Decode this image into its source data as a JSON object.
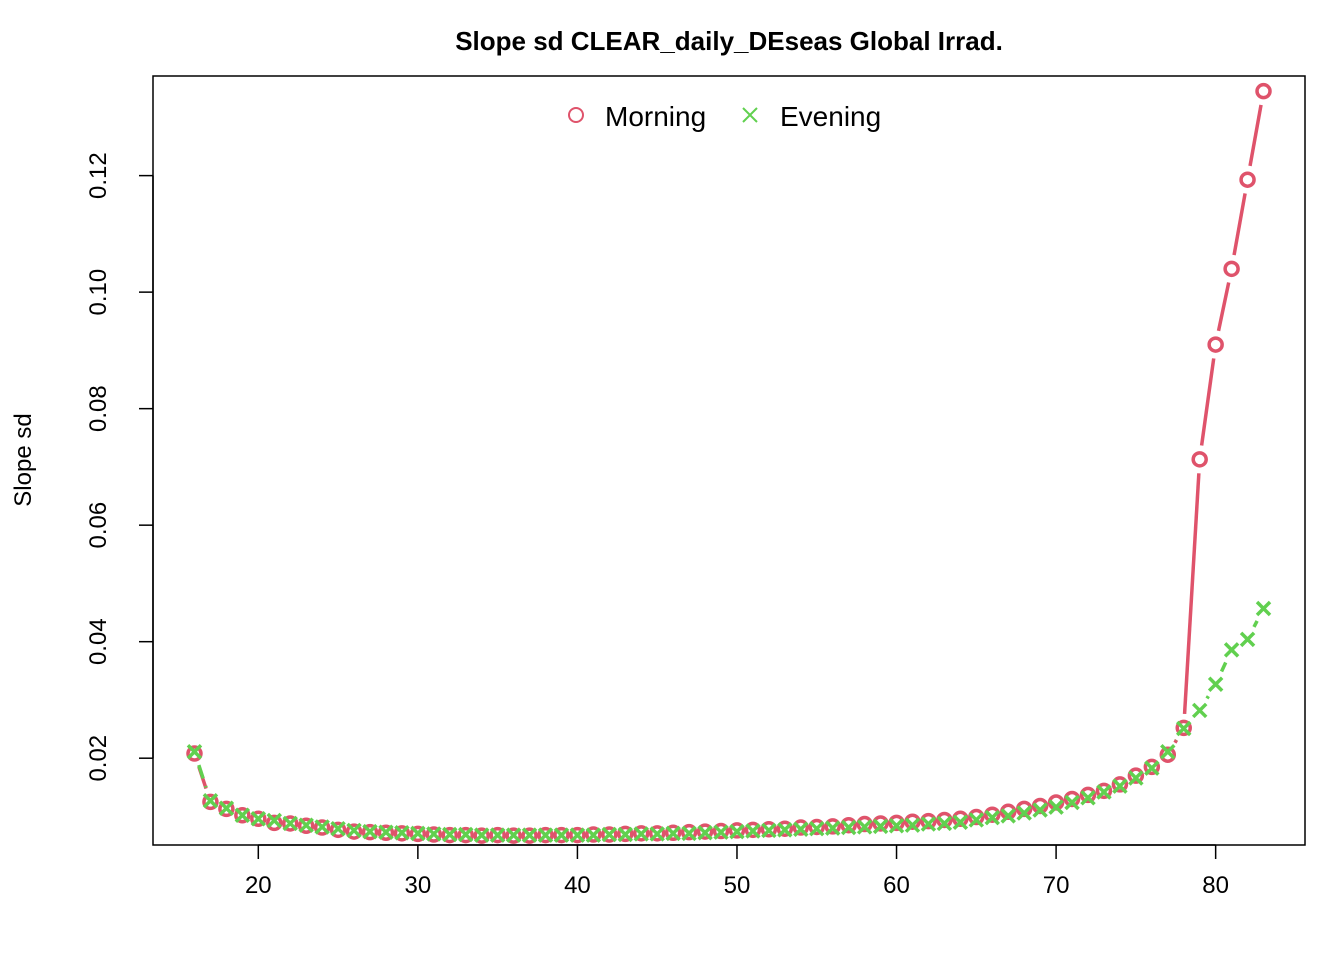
{
  "chart_data": {
    "type": "line",
    "title": "Slope sd CLEAR_daily_DEseas Global Irrad.",
    "xlabel": "",
    "ylabel": "Slope sd",
    "xlim": [
      13.4,
      85.6
    ],
    "ylim": [
      0.0051,
      0.1371
    ],
    "x_ticks": [
      20,
      30,
      40,
      50,
      60,
      70,
      80
    ],
    "x_tick_labels": [
      "20",
      "30",
      "40",
      "50",
      "60",
      "70",
      "80"
    ],
    "y_ticks": [
      0.02,
      0.04,
      0.06,
      0.08,
      0.1,
      0.12
    ],
    "y_tick_labels": [
      "0.02",
      "0.04",
      "0.06",
      "0.08",
      "0.10",
      "0.12"
    ],
    "legend_position": "top",
    "grid": false,
    "x": [
      16,
      17,
      18,
      19,
      20,
      21,
      22,
      23,
      24,
      25,
      26,
      27,
      28,
      29,
      30,
      31,
      32,
      33,
      34,
      35,
      36,
      37,
      38,
      39,
      40,
      41,
      42,
      43,
      44,
      45,
      46,
      47,
      48,
      49,
      50,
      51,
      52,
      53,
      54,
      55,
      56,
      57,
      58,
      59,
      60,
      61,
      62,
      63,
      64,
      65,
      66,
      67,
      68,
      69,
      70,
      71,
      72,
      73,
      74,
      75,
      76,
      77,
      78,
      79,
      80,
      81,
      82,
      83
    ],
    "series": [
      {
        "name": "Morning",
        "color": "#DF536B",
        "marker": "circle",
        "line": "solid",
        "values": [
          0.0208,
          0.0125,
          0.0113,
          0.0102,
          0.0096,
          0.0089,
          0.0088,
          0.0084,
          0.0081,
          0.0077,
          0.0074,
          0.0073,
          0.0072,
          0.0071,
          0.007,
          0.0069,
          0.0068,
          0.0068,
          0.0067,
          0.0068,
          0.0067,
          0.0067,
          0.0068,
          0.0068,
          0.0068,
          0.0069,
          0.0069,
          0.007,
          0.0071,
          0.0071,
          0.0072,
          0.0073,
          0.0074,
          0.0075,
          0.0076,
          0.0077,
          0.0078,
          0.0079,
          0.0081,
          0.0082,
          0.0083,
          0.0085,
          0.0087,
          0.0088,
          0.0089,
          0.0091,
          0.0092,
          0.0094,
          0.0096,
          0.0099,
          0.0103,
          0.0108,
          0.0113,
          0.0118,
          0.0124,
          0.013,
          0.0137,
          0.0144,
          0.0155,
          0.017,
          0.0185,
          0.0206,
          0.0252,
          0.0713,
          0.091,
          0.104,
          0.1193,
          0.1345
        ]
      },
      {
        "name": "Evening",
        "color": "#61D04F",
        "marker": "x",
        "line": "dashed",
        "values": [
          0.0211,
          0.0127,
          0.0114,
          0.0102,
          0.0096,
          0.0093,
          0.0088,
          0.0085,
          0.0082,
          0.0079,
          0.0076,
          0.0074,
          0.0073,
          0.0072,
          0.0071,
          0.007,
          0.0069,
          0.0069,
          0.0068,
          0.0068,
          0.0068,
          0.0068,
          0.0068,
          0.0068,
          0.0068,
          0.0068,
          0.0069,
          0.0069,
          0.007,
          0.007,
          0.0071,
          0.0071,
          0.0072,
          0.0073,
          0.0074,
          0.0075,
          0.0076,
          0.0077,
          0.0078,
          0.0079,
          0.008,
          0.0081,
          0.0082,
          0.0083,
          0.0084,
          0.0085,
          0.0087,
          0.0088,
          0.009,
          0.0094,
          0.0098,
          0.0101,
          0.0106,
          0.0111,
          0.0116,
          0.0124,
          0.0132,
          0.0142,
          0.0152,
          0.0166,
          0.0183,
          0.0211,
          0.0251,
          0.0282,
          0.0327,
          0.0386,
          0.0404,
          0.0457
        ]
      }
    ]
  }
}
